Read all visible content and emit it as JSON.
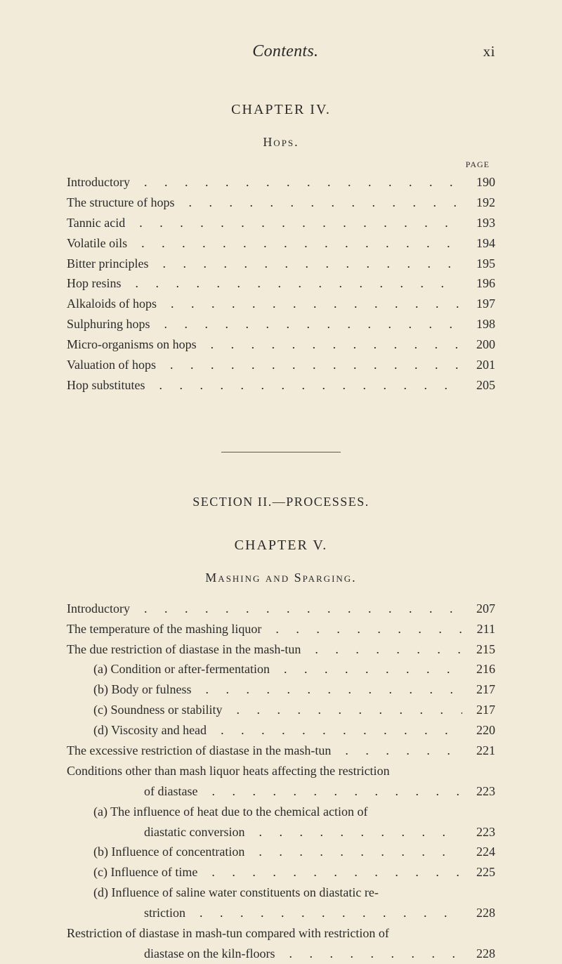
{
  "header": {
    "title": "Contents.",
    "pageNumber": "xi"
  },
  "chapter4": {
    "heading": "CHAPTER IV.",
    "subheading": "Hops.",
    "pageLabel": "PAGE",
    "entries": [
      {
        "text": "Introductory",
        "page": "190"
      },
      {
        "text": "The structure of hops",
        "page": "192"
      },
      {
        "text": "Tannic acid",
        "page": "193"
      },
      {
        "text": "Volatile oils",
        "page": "194"
      },
      {
        "text": "Bitter principles",
        "page": "195"
      },
      {
        "text": "Hop resins",
        "page": "196"
      },
      {
        "text": "Alkaloids of hops",
        "page": "197"
      },
      {
        "text": "Sulphuring hops",
        "page": "198"
      },
      {
        "text": "Micro-organisms on hops",
        "page": "200"
      },
      {
        "text": "Valuation of hops",
        "page": "201"
      },
      {
        "text": "Hop substitutes",
        "page": "205"
      }
    ]
  },
  "section2": {
    "heading": "SECTION II.—PROCESSES."
  },
  "chapter5": {
    "heading": "CHAPTER V.",
    "subheading": "Mashing and Sparging.",
    "entries": [
      {
        "text": "Introductory",
        "page": "207",
        "indent": 0
      },
      {
        "text": "The temperature of the mashing liquor",
        "page": "211",
        "indent": 0
      },
      {
        "text": "The due restriction of diastase in the mash-tun",
        "page": "215",
        "indent": 0
      },
      {
        "text": "(a) Condition or after-fermentation",
        "page": "216",
        "indent": 1
      },
      {
        "text": "(b) Body or fulness",
        "page": "217",
        "indent": 1
      },
      {
        "text": "(c) Soundness or stability",
        "page": "217",
        "indent": 1
      },
      {
        "text": "(d) Viscosity and head",
        "page": "220",
        "indent": 1
      },
      {
        "text": "The excessive restriction of diastase in the mash-tun",
        "page": "221",
        "indent": 0
      },
      {
        "text": "Conditions other than mash liquor heats affecting the restriction",
        "page": "",
        "indent": 0,
        "noPage": true
      },
      {
        "text": "of diastase",
        "page": "223",
        "indent": 2
      },
      {
        "text": "(a) The influence of heat due to the chemical action of",
        "page": "",
        "indent": 1,
        "noPage": true
      },
      {
        "text": "diastatic conversion",
        "page": "223",
        "indent": 2
      },
      {
        "text": "(b) Influence of concentration",
        "page": "224",
        "indent": 1
      },
      {
        "text": "(c) Influence of time",
        "page": "225",
        "indent": 1
      },
      {
        "text": "(d) Influence of saline water constituents on diastatic re-",
        "page": "",
        "indent": 1,
        "noPage": true
      },
      {
        "text": "striction",
        "page": "228",
        "indent": 2
      },
      {
        "text": "Restriction of diastase in mash-tun compared with restriction of",
        "page": "",
        "indent": 0,
        "noPage": true
      },
      {
        "text": "diastase on the kiln-floors",
        "page": "228",
        "indent": 2
      }
    ]
  },
  "leaderDots": ". . . . . . . . . . . . . . . ."
}
